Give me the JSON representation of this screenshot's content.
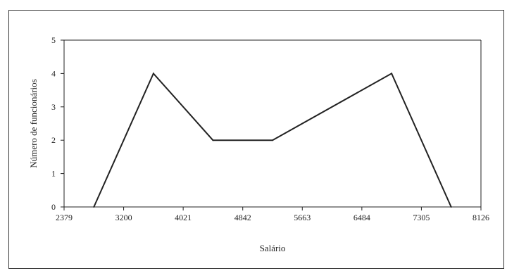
{
  "chart_data": {
    "type": "line",
    "title": "",
    "xlabel": "Salário",
    "ylabel": "Número de funcionários",
    "x_ticks": [
      "2379",
      "3200",
      "4021",
      "4842",
      "5663",
      "6484",
      "7305",
      "8126"
    ],
    "y_ticks": [
      "0",
      "1",
      "2",
      "3",
      "4",
      "5"
    ],
    "xlim": [
      2379,
      8126
    ],
    "ylim": [
      0,
      5
    ],
    "grid": false,
    "legend": "none",
    "series": [
      {
        "x": [
          2789.5,
          3610.5,
          4431.5,
          5252.5,
          6894.5,
          7715.5
        ],
        "y": [
          0,
          4,
          2,
          2,
          4,
          0
        ]
      }
    ],
    "line_color": "#222222"
  }
}
